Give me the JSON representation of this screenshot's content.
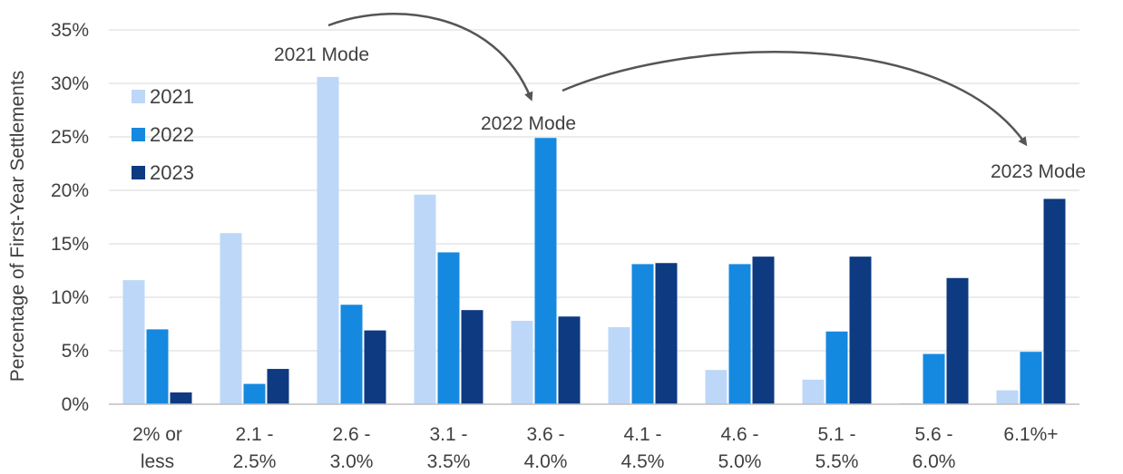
{
  "chart_data": {
    "type": "bar",
    "ylabel": "Percentage of First-Year Settlements",
    "ylim": [
      0,
      35
    ],
    "yticks": [
      "0%",
      "5%",
      "10%",
      "15%",
      "20%",
      "25%",
      "30%",
      "35%"
    ],
    "ytick_values": [
      0,
      5,
      10,
      15,
      20,
      25,
      30,
      35
    ],
    "grid": true,
    "legend_position": "top-left",
    "categories": [
      [
        "2% or",
        "less"
      ],
      [
        "2.1 -",
        "2.5%"
      ],
      [
        "2.6 -",
        "3.0%"
      ],
      [
        "3.1 -",
        "3.5%"
      ],
      [
        "3.6 -",
        "4.0%"
      ],
      [
        "4.1 -",
        "4.5%"
      ],
      [
        "4.6 -",
        "5.0%"
      ],
      [
        "5.1 -",
        "5.5%"
      ],
      [
        "5.6 -",
        "6.0%"
      ],
      [
        "6.1%+"
      ]
    ],
    "series": [
      {
        "name": "2021",
        "color": "#bdd7f8",
        "values": [
          11.6,
          16.0,
          30.6,
          19.6,
          7.8,
          7.2,
          3.2,
          2.3,
          0.1,
          1.3
        ]
      },
      {
        "name": "2022",
        "color": "#1589e0",
        "values": [
          7.0,
          1.9,
          9.3,
          14.2,
          24.9,
          13.1,
          13.1,
          6.8,
          4.7,
          4.9
        ]
      },
      {
        "name": "2023",
        "color": "#0d3a80",
        "values": [
          1.1,
          3.3,
          6.9,
          8.8,
          8.2,
          13.2,
          13.8,
          13.8,
          11.8,
          19.2
        ]
      }
    ],
    "annotations": [
      {
        "text": "2021 Mode"
      },
      {
        "text": "2022 Mode"
      },
      {
        "text": "2023 Mode"
      }
    ]
  }
}
